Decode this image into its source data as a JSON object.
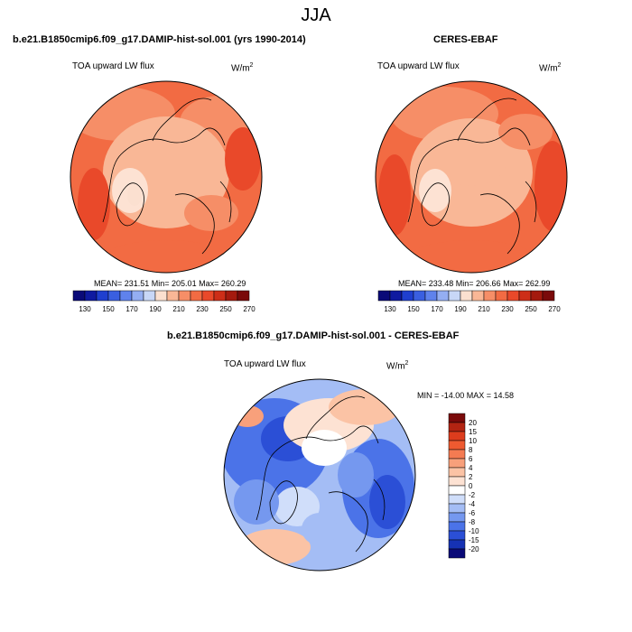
{
  "page": {
    "title": "JJA"
  },
  "colors": {
    "abs_scale": [
      "#0a0a78",
      "#0f1aa0",
      "#1f3fcf",
      "#3a5fe0",
      "#5f82ec",
      "#94aef2",
      "#c8d7f7",
      "#fbe0d0",
      "#f9b796",
      "#f68e67",
      "#f26b43",
      "#e9492a",
      "#cd2e18",
      "#a41a0e",
      "#7a0a0a"
    ],
    "diff_scale": [
      "#0a0a78",
      "#1632b4",
      "#2b4fd6",
      "#4b73e8",
      "#7598ef",
      "#a4bdf5",
      "#d0defa",
      "#ffffff",
      "#fde2d3",
      "#fbc3a5",
      "#f8a07b",
      "#f47b52",
      "#ee5a30",
      "#dd3c1d",
      "#b32412",
      "#7a0a0a"
    ],
    "land_outline": "#000000"
  },
  "panels": {
    "model": {
      "title": "b.e21.B1850cmip6.f09_g17.DAMIP-hist-sol.001 (yrs 1990-2014)",
      "var_label": "TOA upward LW flux",
      "units_base": "W/m",
      "units_exp": "2",
      "stats": "MEAN= 231.51  Min= 205.01  Max= 260.29"
    },
    "obs": {
      "title": "CERES-EBAF",
      "var_label": "TOA upward LW flux",
      "units_base": "W/m",
      "units_exp": "2",
      "stats": "MEAN= 233.48  Min= 206.66  Max= 262.99"
    },
    "diff": {
      "title": "b.e21.B1850cmip6.f09_g17.DAMIP-hist-sol.001 - CERES-EBAF",
      "var_label": "TOA upward LW flux",
      "units_base": "W/m",
      "units_exp": "2",
      "stats": "MIN = -14.00 MAX =  14.58"
    }
  },
  "chart_data": [
    {
      "type": "heatmap",
      "projection": "polar stereographic, north pole",
      "title": "b.e21.B1850cmip6.f09_g17.DAMIP-hist-sol.001 (yrs 1990-2014)",
      "variable": "TOA upward LW flux",
      "units": "W/m2",
      "stats": {
        "mean": 231.51,
        "min": 205.01,
        "max": 260.29
      },
      "colorbar": {
        "orientation": "horizontal",
        "tick_labels": [
          "130",
          "150",
          "170",
          "190",
          "210",
          "230",
          "250",
          "270"
        ]
      }
    },
    {
      "type": "heatmap",
      "projection": "polar stereographic, north pole",
      "title": "CERES-EBAF",
      "variable": "TOA upward LW flux",
      "units": "W/m2",
      "stats": {
        "mean": 233.48,
        "min": 206.66,
        "max": 262.99
      },
      "colorbar": {
        "orientation": "horizontal",
        "tick_labels": [
          "130",
          "150",
          "170",
          "190",
          "210",
          "230",
          "250",
          "270"
        ]
      }
    },
    {
      "type": "heatmap",
      "projection": "polar stereographic, north pole",
      "title": "b.e21.B1850cmip6.f09_g17.DAMIP-hist-sol.001 - CERES-EBAF",
      "variable": "TOA upward LW flux",
      "units": "W/m2",
      "stats": {
        "min": -14.0,
        "max": 14.58
      },
      "colorbar": {
        "orientation": "vertical",
        "tick_labels": [
          "20",
          "15",
          "10",
          "8",
          "6",
          "4",
          "2",
          "0",
          "-2",
          "-4",
          "-6",
          "-8",
          "-10",
          "-15",
          "-20"
        ]
      }
    }
  ]
}
